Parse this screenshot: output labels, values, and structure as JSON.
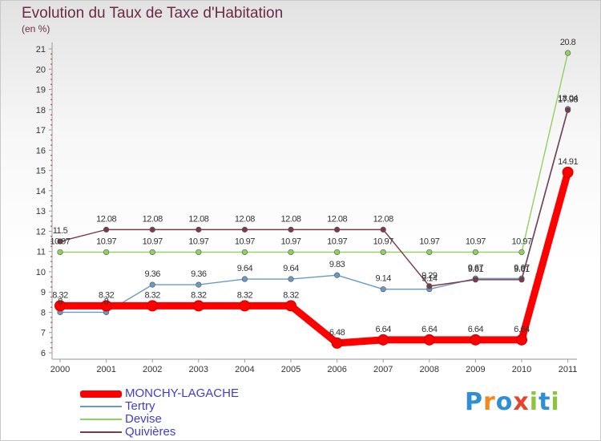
{
  "title": "Evolution du Taux de Taxe d'Habitation",
  "unit_label": "(en %)",
  "logo_text": "Proxiti",
  "chart_data": {
    "type": "line",
    "title": "Evolution du Taux de Taxe d'Habitation",
    "ylabel": "(en %)",
    "xlabel": "",
    "ylim": [
      6,
      21
    ],
    "y_ticks": [
      6,
      7,
      8,
      9,
      10,
      11,
      12,
      13,
      14,
      15,
      16,
      17,
      18,
      19,
      20,
      21
    ],
    "grid": false,
    "legend_position": "bottom-left",
    "x": [
      "2000",
      "2001",
      "2002",
      "2003",
      "2004",
      "2005",
      "2006",
      "2007",
      "2008",
      "2009",
      "2010",
      "2011"
    ],
    "series": [
      {
        "name": "MONCHY-LAGACHE",
        "color": "#ff0000",
        "values": [
          8.32,
          8.32,
          8.32,
          8.32,
          8.32,
          8.32,
          6.48,
          6.64,
          6.64,
          6.64,
          6.64,
          14.91
        ],
        "labels": [
          "8.32",
          "8.32",
          "8.32",
          "8.32",
          "8.32",
          "8.32",
          "6.48",
          "6.64",
          "6.64",
          "6.64",
          "6.64",
          "14.91"
        ]
      },
      {
        "name": "Tertry",
        "color": "#6a9ac4",
        "values": [
          8,
          8,
          9.36,
          9.36,
          9.64,
          9.64,
          9.83,
          9.14,
          9.14,
          9.67,
          9.67,
          18.04
        ],
        "labels": [
          "8",
          "8",
          "9.36",
          "9.36",
          "9.64",
          "9.64",
          "9.83",
          "9.14",
          "9.14",
          "9.67",
          "9.67",
          "18.04"
        ]
      },
      {
        "name": "Devise",
        "color": "#90d060",
        "values": [
          10.97,
          10.97,
          10.97,
          10.97,
          10.97,
          10.97,
          10.97,
          10.97,
          10.97,
          10.97,
          10.97,
          20.8
        ],
        "labels": [
          "10.97",
          "10.97",
          "10.97",
          "10.97",
          "10.97",
          "10.97",
          "10.97",
          "10.97",
          "10.97",
          "10.97",
          "10.97",
          "20.8"
        ]
      },
      {
        "name": "Quivières",
        "color": "#7a3a4a",
        "values": [
          11.5,
          12.08,
          12.08,
          12.08,
          12.08,
          12.08,
          12.08,
          12.08,
          9.29,
          9.61,
          9.61,
          17.98
        ],
        "labels": [
          "11.5",
          "12.08",
          "12.08",
          "12.08",
          "12.08",
          "12.08",
          "12.08",
          "12.08",
          "9.29",
          "9.61",
          "9.61",
          "17.98"
        ]
      }
    ]
  }
}
